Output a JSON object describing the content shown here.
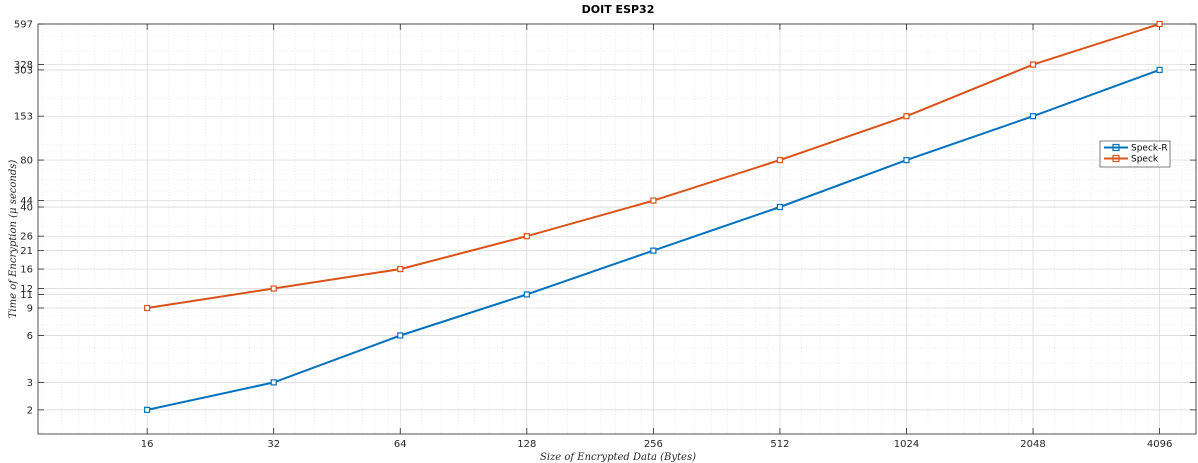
{
  "chart_data": {
    "type": "line",
    "title": "DOIT ESP32",
    "xlabel": "Size of Encrypted Data (Bytes)",
    "ylabel": "Time of Encryption (μ seconds)",
    "x_scale": "log2",
    "y_scale": "log",
    "x": [
      16,
      32,
      64,
      128,
      256,
      512,
      1024,
      2048,
      4096
    ],
    "x_tick_labels": [
      "16",
      "32",
      "64",
      "128",
      "256",
      "512",
      "1024",
      "2048",
      "4096"
    ],
    "xlim": [
      8.8,
      5000
    ],
    "ylim": [
      1.4,
      597
    ],
    "y_ticks": [
      2,
      3,
      6,
      9,
      11,
      12,
      16,
      21,
      26,
      40,
      44,
      80,
      153,
      303,
      328,
      597
    ],
    "y_tick_labels": [
      "2",
      "3",
      "6",
      "9",
      "11",
      "12",
      "16",
      "21",
      "26",
      "40",
      "44",
      "80",
      "153",
      "303",
      "328",
      "597"
    ],
    "grid": true,
    "legend_position": "right",
    "series": [
      {
        "name": "Speck-R",
        "color": "#0072BD",
        "marker": "square",
        "values": [
          2,
          3,
          6,
          11,
          21,
          40,
          80,
          153,
          303
        ]
      },
      {
        "name": "Speck",
        "color": "#D95319",
        "marker": "square",
        "values": [
          9,
          12,
          16,
          26,
          44,
          80,
          153,
          328,
          597
        ]
      }
    ]
  }
}
